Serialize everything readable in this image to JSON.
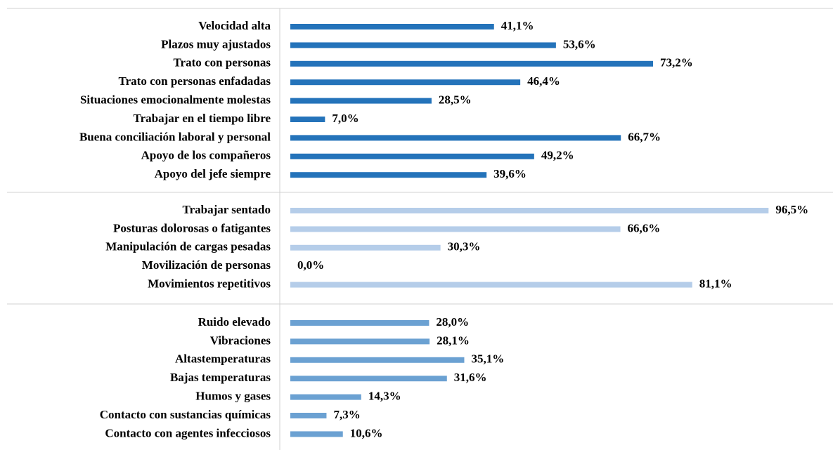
{
  "chart_data": {
    "type": "bar",
    "orientation": "horizontal",
    "xlim": [
      0,
      100
    ],
    "groups": [
      {
        "color": "#2473ba",
        "categories": [
          "Velocidad alta",
          "Plazos muy ajustados",
          "Trato con personas",
          "Trato con personas enfadadas",
          "Situaciones emocionalmente molestas",
          "Trabajar en el tiempo libre",
          "Buena conciliación laboral y personal",
          "Apoyo de los compañeros",
          "Apoyo del jefe siempre"
        ],
        "values": [
          41.1,
          53.6,
          73.2,
          46.4,
          28.5,
          7.0,
          66.7,
          49.2,
          39.6
        ],
        "value_labels": [
          "41,1%",
          "53,6%",
          "73,2%",
          "46,4%",
          "28,5%",
          "7,0%",
          "66,7%",
          "49,2%",
          "39,6%"
        ]
      },
      {
        "color": "#b5cde9",
        "categories": [
          "Trabajar sentado",
          "Posturas dolorosas o fatigantes",
          "Manipulación de cargas pesadas",
          "Movilización de personas",
          "Movimientos repetitivos"
        ],
        "values": [
          96.5,
          66.6,
          30.3,
          0.0,
          81.1
        ],
        "value_labels": [
          "96,5%",
          "66,6%",
          "30,3%",
          "0,0%",
          "81,1%"
        ]
      },
      {
        "color": "#6ba1d2",
        "categories": [
          "Ruido elevado",
          "Vibraciones",
          "Altastemperaturas",
          "Bajas temperaturas",
          "Humos y gases",
          "Contacto con sustancias químicas",
          "Contacto con agentes infecciosos"
        ],
        "values": [
          28.0,
          28.1,
          35.1,
          31.6,
          14.3,
          7.3,
          10.6
        ],
        "value_labels": [
          "28,0%",
          "28,1%",
          "35,1%",
          "31,6%",
          "14,3%",
          "7,3%",
          "10,6%"
        ]
      }
    ]
  }
}
